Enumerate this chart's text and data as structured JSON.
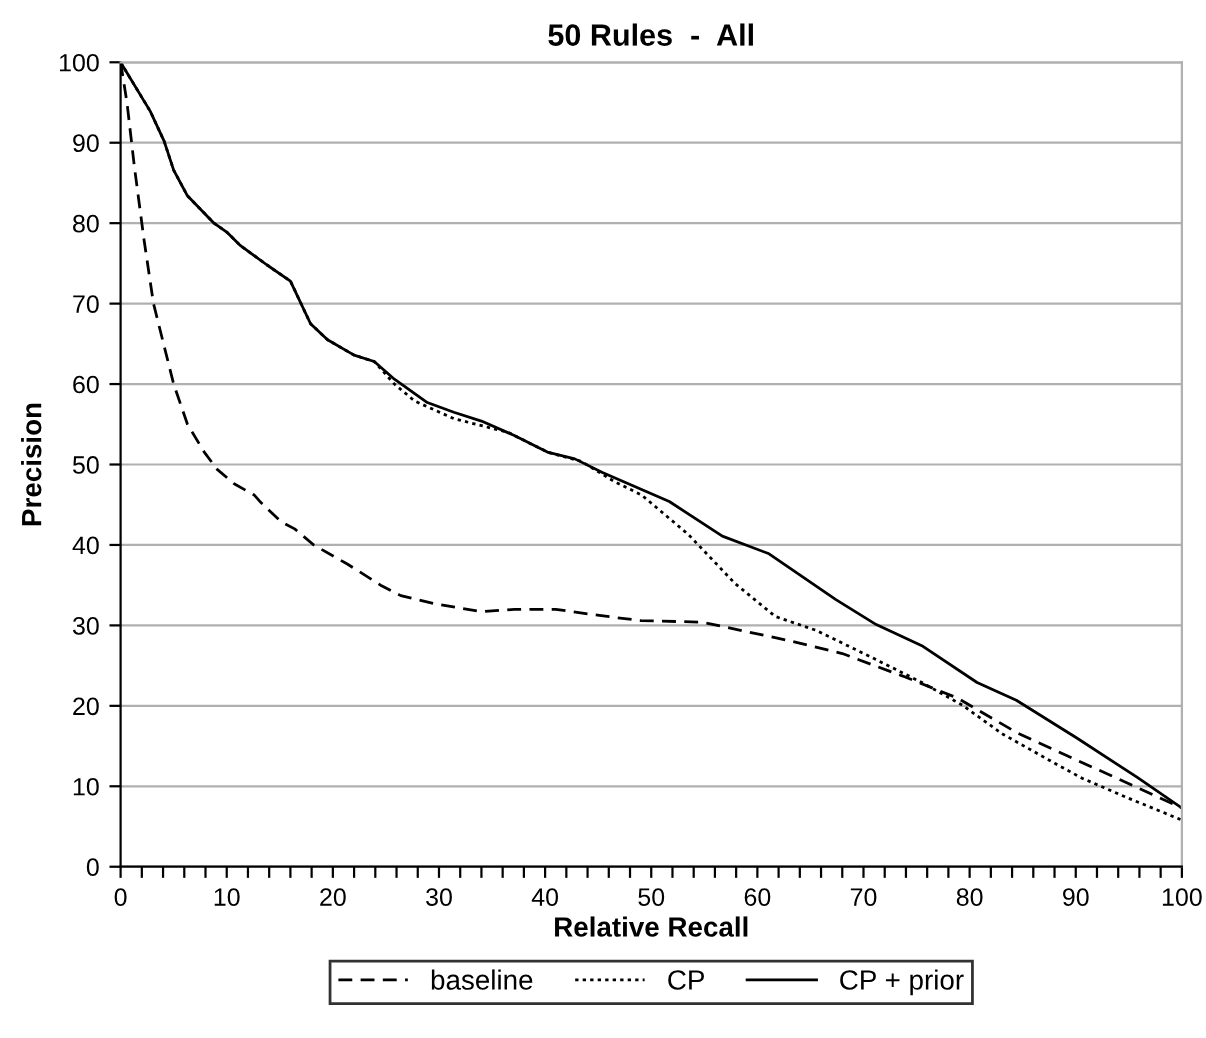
{
  "chart_data": {
    "type": "line",
    "title": "50 Rules  -  All",
    "xlabel": "Relative Recall",
    "ylabel": "Precision",
    "xlim": [
      0,
      100
    ],
    "ylim": [
      0,
      100
    ],
    "xticks": [
      0,
      {
        "value": 2,
        "label": null
      },
      {
        "value": 4,
        "label": null
      },
      {
        "value": 6,
        "label": null
      },
      {
        "value": 8,
        "label": null
      },
      10,
      {
        "value": 12,
        "label": null
      },
      {
        "value": 14,
        "label": null
      },
      {
        "value": 16,
        "label": null
      },
      {
        "value": 18,
        "label": null
      },
      20,
      {
        "value": 22,
        "label": null
      },
      {
        "value": 24,
        "label": null
      },
      {
        "value": 26,
        "label": null
      },
      {
        "value": 28,
        "label": null
      },
      30,
      {
        "value": 32,
        "label": null
      },
      {
        "value": 34,
        "label": null
      },
      {
        "value": 36,
        "label": null
      },
      {
        "value": 38,
        "label": null
      },
      40,
      {
        "value": 42,
        "label": null
      },
      {
        "value": 44,
        "label": null
      },
      {
        "value": 46,
        "label": null
      },
      {
        "value": 48,
        "label": null
      },
      50,
      {
        "value": 52,
        "label": null
      },
      {
        "value": 54,
        "label": null
      },
      {
        "value": 56,
        "label": null
      },
      {
        "value": 58,
        "label": null
      },
      60,
      {
        "value": 62,
        "label": null
      },
      {
        "value": 64,
        "label": null
      },
      {
        "value": 66,
        "label": null
      },
      {
        "value": 68,
        "label": null
      },
      70,
      {
        "value": 72,
        "label": null
      },
      {
        "value": 74,
        "label": null
      },
      {
        "value": 76,
        "label": null
      },
      {
        "value": 78,
        "label": null
      },
      80,
      {
        "value": 82,
        "label": null
      },
      {
        "value": 84,
        "label": null
      },
      {
        "value": 86,
        "label": null
      },
      {
        "value": 88,
        "label": null
      },
      90,
      {
        "value": 92,
        "label": null
      },
      {
        "value": 94,
        "label": null
      },
      {
        "value": 96,
        "label": null
      },
      {
        "value": 98,
        "label": null
      },
      100
    ],
    "yticks": [
      0,
      10,
      20,
      30,
      40,
      50,
      60,
      70,
      80,
      90,
      100
    ],
    "grid": "y",
    "legend": "bottom",
    "marker": "none",
    "series": [
      {
        "name": "baseline",
        "color": "#000000",
        "line_style": "dashed",
        "x": [
          0,
          0.6,
          1.3,
          2.2,
          3.1,
          5,
          6.3,
          7.9,
          9.1,
          10.7,
          12.6,
          13.2,
          15.1,
          16.4,
          18.2,
          21.4,
          24.5,
          26.4,
          29.6,
          34,
          37.1,
          41,
          45.3,
          49,
          54.8,
          63,
          68,
          73.7,
          78.8,
          84.4,
          89.5,
          93.2,
          100
        ],
        "values": [
          100,
          95,
          87,
          78,
          70,
          60,
          55,
          51.5,
          49.4,
          47.6,
          46.2,
          45.3,
          42.9,
          42,
          40,
          37.6,
          35,
          33.7,
          32.7,
          31.7,
          32,
          32,
          31.2,
          30.6,
          30.4,
          28.1,
          26.5,
          23.7,
          21,
          16.7,
          13.6,
          11.4,
          7.3
        ]
      },
      {
        "name": "CP",
        "color": "#000000",
        "line_style": "dotted",
        "x": [
          0,
          2.8,
          4.1,
          5,
          6.3,
          8.8,
          10,
          11.3,
          13.8,
          16,
          17.9,
          19.5,
          22,
          23.9,
          25.8,
          27.7,
          31.4,
          36.5,
          40.3,
          43.4,
          46.5,
          49.1,
          53.5,
          57.9,
          61.7,
          65.5,
          70.5,
          75.5,
          79.3,
          83.1,
          88.1,
          90.6,
          95,
          100
        ],
        "values": [
          100,
          93.9,
          90.2,
          86.6,
          83.4,
          80,
          78.9,
          77.2,
          74.8,
          72.8,
          67.5,
          65.5,
          63.6,
          62.8,
          60,
          57.9,
          55.7,
          54,
          51.5,
          50.4,
          47.9,
          46.2,
          41.3,
          35.2,
          31.1,
          29.4,
          26.2,
          22.9,
          20.1,
          16.5,
          12.8,
          11,
          8.5,
          5.8
        ]
      },
      {
        "name": "CP + prior",
        "color": "#000000",
        "line_style": "solid",
        "x": [
          0,
          2.8,
          4.1,
          5,
          6.3,
          8.8,
          10,
          11.3,
          13.8,
          16,
          17.9,
          19.5,
          22,
          23.9,
          25.8,
          28.9,
          31.4,
          34,
          37.1,
          40.3,
          42.8,
          45.4,
          51.7,
          56.7,
          61.1,
          67.4,
          71.2,
          75.6,
          80.7,
          84.4,
          90.1,
          95.8,
          100
        ],
        "values": [
          100,
          93.9,
          90.2,
          86.6,
          83.4,
          80,
          78.9,
          77.2,
          74.8,
          72.8,
          67.5,
          65.5,
          63.6,
          62.8,
          60.6,
          57.7,
          56.5,
          55.4,
          53.6,
          51.5,
          50.7,
          49,
          45.4,
          41.1,
          38.9,
          33.2,
          30.1,
          27.4,
          22.9,
          20.7,
          16,
          11.1,
          7.3
        ]
      }
    ]
  }
}
